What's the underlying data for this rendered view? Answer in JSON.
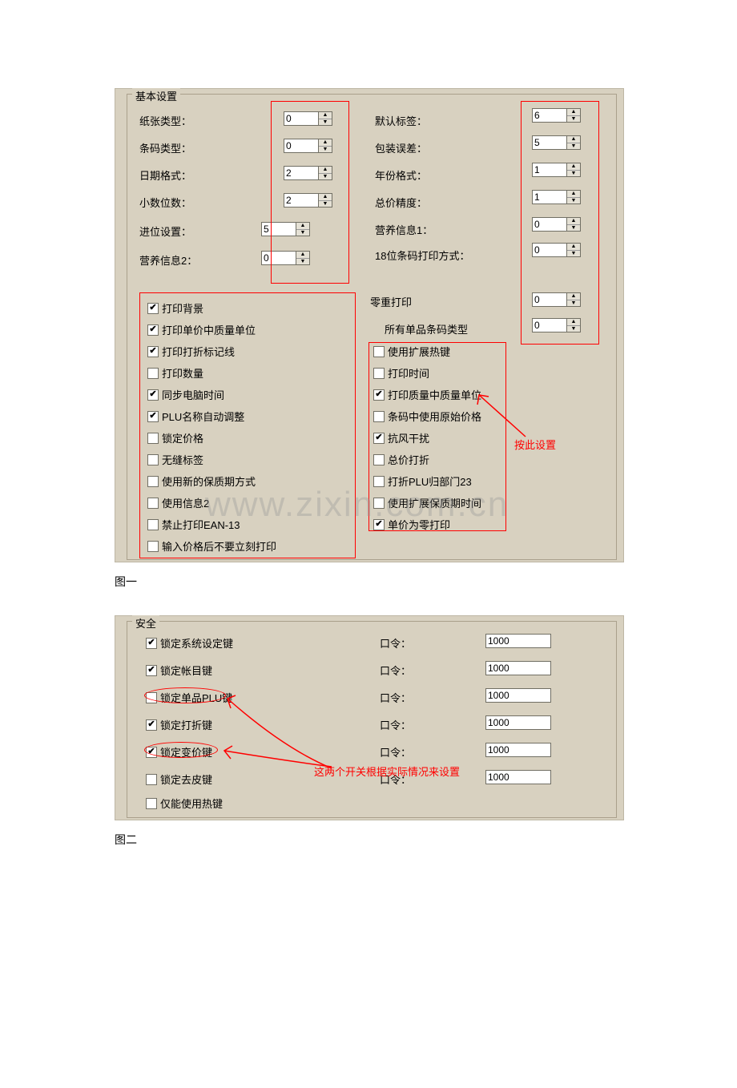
{
  "figure1_caption": "图一",
  "figure2_caption": "图二",
  "panel1": {
    "group_title": "基本设置",
    "left_labels": {
      "paper_type": "纸张类型：",
      "barcode_type": "条码类型：",
      "date_format": "日期格式：",
      "decimal_places": "小数位数：",
      "rounding": "进位设置：",
      "nutrition2": "营养信息2："
    },
    "right_labels": {
      "default_label": "默认标签：",
      "pack_tolerance": "包装误差：",
      "year_format": "年份格式：",
      "total_precision": "总价精度：",
      "nutrition1": "营养信息1：",
      "barcode18": "18位条码打印方式："
    },
    "spin_values": {
      "paper_type": "0",
      "barcode_type": "0",
      "date_format": "2",
      "decimal_places": "2",
      "rounding": "5",
      "nutrition2": "0",
      "default_label": "6",
      "pack_tolerance": "5",
      "year_format": "1",
      "total_precision": "1",
      "nutrition1": "0",
      "barcode18": "0",
      "zero_weight": "0",
      "all_barcode": "0"
    },
    "mid_right_labels": {
      "zero_weight_print": "零重打印",
      "all_barcode_type": "所有单品条码类型"
    },
    "checks_left": [
      {
        "label": "打印背景",
        "checked": true
      },
      {
        "label": "打印单价中质量单位",
        "checked": true
      },
      {
        "label": "打印打折标记线",
        "checked": true
      },
      {
        "label": "打印数量",
        "checked": false
      },
      {
        "label": "同步电脑时间",
        "checked": true
      },
      {
        "label": "PLU名称自动调整",
        "checked": true
      },
      {
        "label": "锁定价格",
        "checked": false
      },
      {
        "label": "无缝标签",
        "checked": false
      },
      {
        "label": "使用新的保质期方式",
        "checked": false
      },
      {
        "label": "使用信息2",
        "checked": false
      },
      {
        "label": "禁止打印EAN-13",
        "checked": false
      },
      {
        "label": "输入价格后不要立刻打印",
        "checked": false
      }
    ],
    "checks_right": [
      {
        "label": "使用扩展热键",
        "checked": false
      },
      {
        "label": "打印时间",
        "checked": false
      },
      {
        "label": "打印质量中质量单位",
        "checked": true
      },
      {
        "label": "条码中使用原始价格",
        "checked": false
      },
      {
        "label": "抗风干扰",
        "checked": true
      },
      {
        "label": "总价打折",
        "checked": false
      },
      {
        "label": "打折PLU归部门23",
        "checked": false
      },
      {
        "label": "使用扩展保质期时间",
        "checked": false
      },
      {
        "label": "单价为零打印",
        "checked": true
      }
    ],
    "annotation": "按此设置",
    "watermark": "www.zixin.com.cn",
    "colors": {
      "panel_bg": "#d8d1c0",
      "redbox": "#ff0000",
      "text": "#000000"
    }
  },
  "panel2": {
    "group_title": "安全",
    "rows": [
      {
        "label": "锁定系统设定键",
        "checked": true,
        "pw_label": "口令：",
        "pw": "1000"
      },
      {
        "label": "锁定帐目键",
        "checked": true,
        "pw_label": "口令：",
        "pw": "1000"
      },
      {
        "label": "锁定单品PLU键",
        "checked": false,
        "pw_label": "口令：",
        "pw": "1000"
      },
      {
        "label": "锁定打折键",
        "checked": true,
        "pw_label": "口令：",
        "pw": "1000"
      },
      {
        "label": "锁定变价键",
        "checked": true,
        "pw_label": "口令：",
        "pw": "1000"
      },
      {
        "label": "锁定去皮键",
        "checked": false,
        "pw_label": "口令：",
        "pw": "1000"
      }
    ],
    "hotkey_only": {
      "label": "仅能使用热键",
      "checked": false
    },
    "annotation": "这两个开关根据实际情况来设置"
  }
}
